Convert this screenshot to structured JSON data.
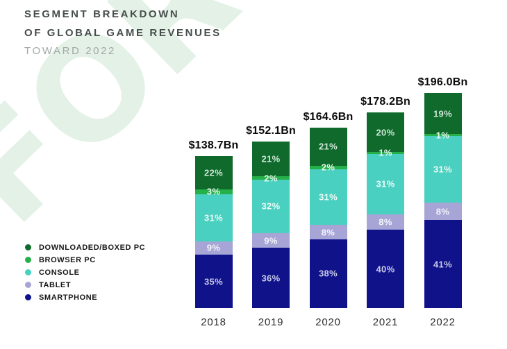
{
  "title": {
    "line1": "SEGMENT BREAKDOWN",
    "line2": "OF GLOBAL GAME REVENUES",
    "subtitle": "TOWARD 2022"
  },
  "watermark": "FOR",
  "chart_data": {
    "type": "bar",
    "stacked": true,
    "title": "Segment breakdown of global game revenues toward 2022",
    "categories": [
      "2018",
      "2019",
      "2020",
      "2021",
      "2022"
    ],
    "totals": [
      "$138.7Bn",
      "$152.1Bn",
      "$164.6Bn",
      "$178.2Bn",
      "$196.0Bn"
    ],
    "totals_bn": [
      138.7,
      152.1,
      164.6,
      178.2,
      196.0
    ],
    "unit": "%",
    "legend_position": "bottom-left",
    "series": [
      {
        "name": "DOWNLOADED/BOXED PC",
        "color": "#0f6a2c",
        "label_color": "#cfe7d8",
        "values": [
          22,
          21,
          21,
          20,
          19
        ]
      },
      {
        "name": "BROWSER PC",
        "color": "#25b04a",
        "label_color": "#eaf8ef",
        "values": [
          3,
          2,
          2,
          1,
          1
        ]
      },
      {
        "name": "CONSOLE",
        "color": "#4ad0c0",
        "label_color": "#eafaf6",
        "values": [
          31,
          32,
          31,
          31,
          31
        ]
      },
      {
        "name": "TABLET",
        "color": "#a6a5d6",
        "label_color": "#f5f5fb",
        "values": [
          9,
          9,
          8,
          8,
          8
        ]
      },
      {
        "name": "SMARTPHONE",
        "color": "#10128a",
        "label_color": "#c8cae8",
        "values": [
          35,
          36,
          38,
          40,
          41
        ]
      }
    ]
  }
}
